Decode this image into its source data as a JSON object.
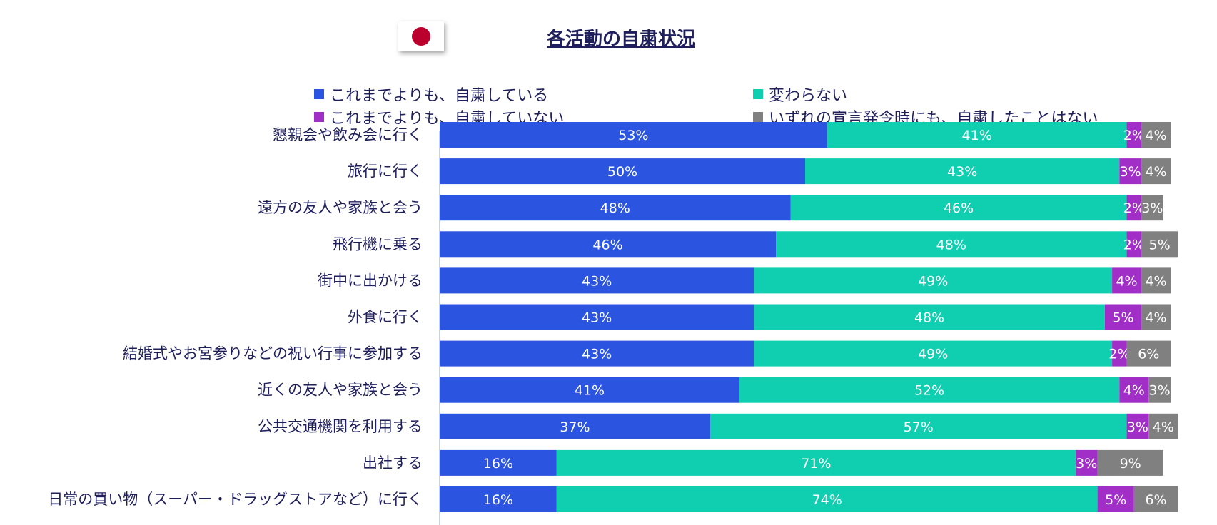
{
  "header": {
    "title": "各活動の自粛状況",
    "flag_icon": "japan-flag-icon"
  },
  "legend": [
    {
      "label": "これまでよりも、自粛している",
      "color": "#2b55e0"
    },
    {
      "label": "変わらない",
      "color": "#10cfb0"
    },
    {
      "label": "これまでよりも、自粛していない",
      "color": "#a22ec8"
    },
    {
      "label": "いずれの宣言発令時にも、自粛したことはない",
      "color": "#808080"
    }
  ],
  "chart_data": {
    "type": "bar",
    "orientation": "horizontal",
    "stacked": true,
    "title": "各活動の自粛状況",
    "categories": [
      "懇親会や飲み会に行く",
      "旅行に行く",
      "遠方の友人や家族と会う",
      "飛行機に乗る",
      "街中に出かける",
      "外食に行く",
      "結婚式やお宮参りなどの祝い行事に参加する",
      "近くの友人や家族と会う",
      "公共交通機関を利用する",
      "出社する",
      "日常の買い物（スーパー・ドラッグストアなど）に行く"
    ],
    "series": [
      {
        "name": "これまでよりも、自粛している",
        "color": "#2b55e0",
        "values": [
          53,
          50,
          48,
          46,
          43,
          43,
          43,
          41,
          37,
          16,
          16
        ]
      },
      {
        "name": "変わらない",
        "color": "#10cfb0",
        "values": [
          41,
          43,
          46,
          48,
          49,
          48,
          49,
          52,
          57,
          71,
          74
        ]
      },
      {
        "name": "これまでよりも、自粛していない",
        "color": "#a22ec8",
        "values": [
          2,
          3,
          2,
          2,
          4,
          5,
          2,
          4,
          3,
          3,
          5
        ]
      },
      {
        "name": "いずれの宣言発令時にも、自粛したことはない",
        "color": "#808080",
        "values": [
          4,
          4,
          3,
          5,
          4,
          4,
          6,
          3,
          4,
          9,
          6
        ]
      }
    ],
    "value_suffix": "%",
    "xlim": [
      0,
      100
    ],
    "legend_position": "top"
  }
}
